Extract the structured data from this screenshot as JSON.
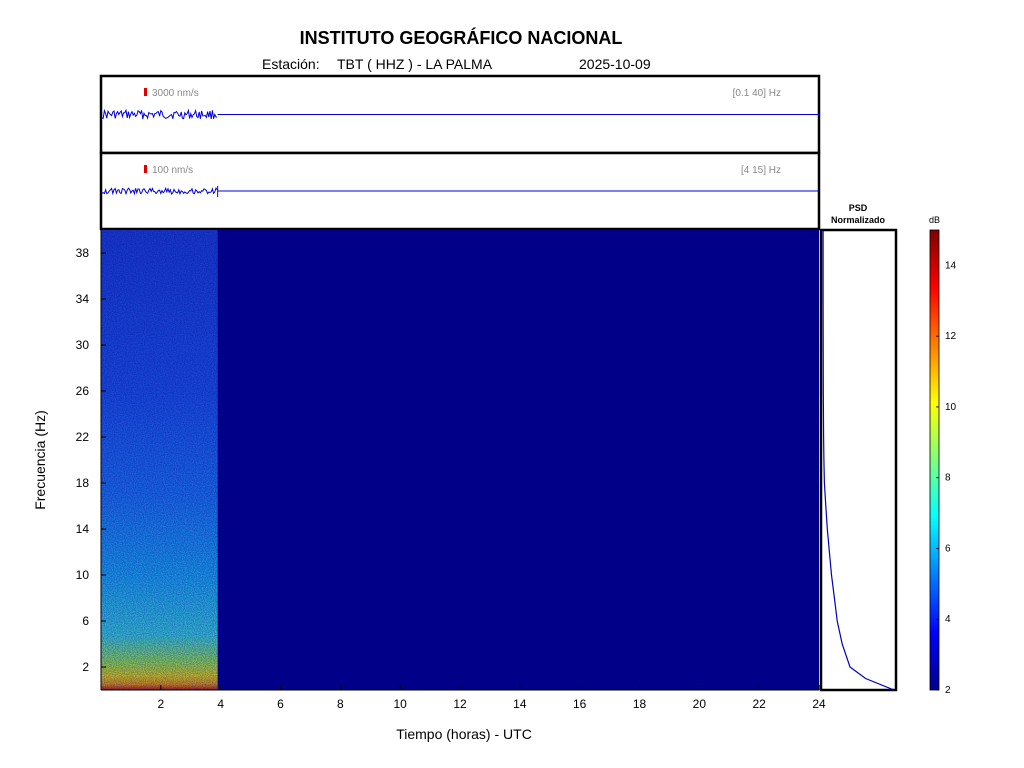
{
  "header": {
    "title": "INSTITUTO GEOGRÁFICO NACIONAL",
    "station_label": "Estación:",
    "station_value": "TBT ( HHZ ) - LA PALMA",
    "date": "2025-10-09"
  },
  "chart_data": [
    {
      "type": "line",
      "panel": "seismogram-broadband",
      "scale_label": "3000 nm/s",
      "band_label": "[0.1 40] Hz",
      "x_range_hours": [
        0,
        24
      ],
      "data_end_hours": 3.9,
      "color": "#0000e0"
    },
    {
      "type": "line",
      "panel": "seismogram-filtered",
      "scale_label": "100 nm/s",
      "band_label": "[4 15] Hz",
      "x_range_hours": [
        0,
        24
      ],
      "data_end_hours": 3.9,
      "color": "#0000e0"
    },
    {
      "type": "heatmap",
      "panel": "spectrogram",
      "xlabel": "Tiempo (horas) - UTC",
      "ylabel": "Frecuencia  (Hz)",
      "xlim": [
        0,
        24
      ],
      "ylim": [
        0,
        40
      ],
      "x_ticks": [
        2,
        4,
        6,
        8,
        10,
        12,
        14,
        16,
        18,
        20,
        22,
        24
      ],
      "y_ticks": [
        2,
        6,
        10,
        14,
        18,
        22,
        26,
        30,
        34,
        38
      ],
      "data_end_hours": 3.9,
      "background_db": 2
    },
    {
      "type": "line",
      "panel": "psd",
      "title_line1": "PSD",
      "title_line2": "Normalizado",
      "frequency_hz": [
        0,
        1,
        2,
        4,
        6,
        8,
        10,
        12,
        14,
        16,
        18,
        20,
        22,
        26,
        30,
        34,
        38,
        40
      ],
      "value": [
        1.0,
        0.6,
        0.38,
        0.27,
        0.2,
        0.16,
        0.12,
        0.09,
        0.06,
        0.04,
        0.02,
        0.012,
        0.008,
        0.004,
        0.003,
        0.002,
        0.002,
        0.002
      ]
    },
    {
      "type": "colorbar",
      "panel": "colorbar",
      "label": "dB",
      "range": [
        2,
        15
      ],
      "ticks": [
        2,
        4,
        6,
        8,
        10,
        12,
        14
      ]
    }
  ]
}
